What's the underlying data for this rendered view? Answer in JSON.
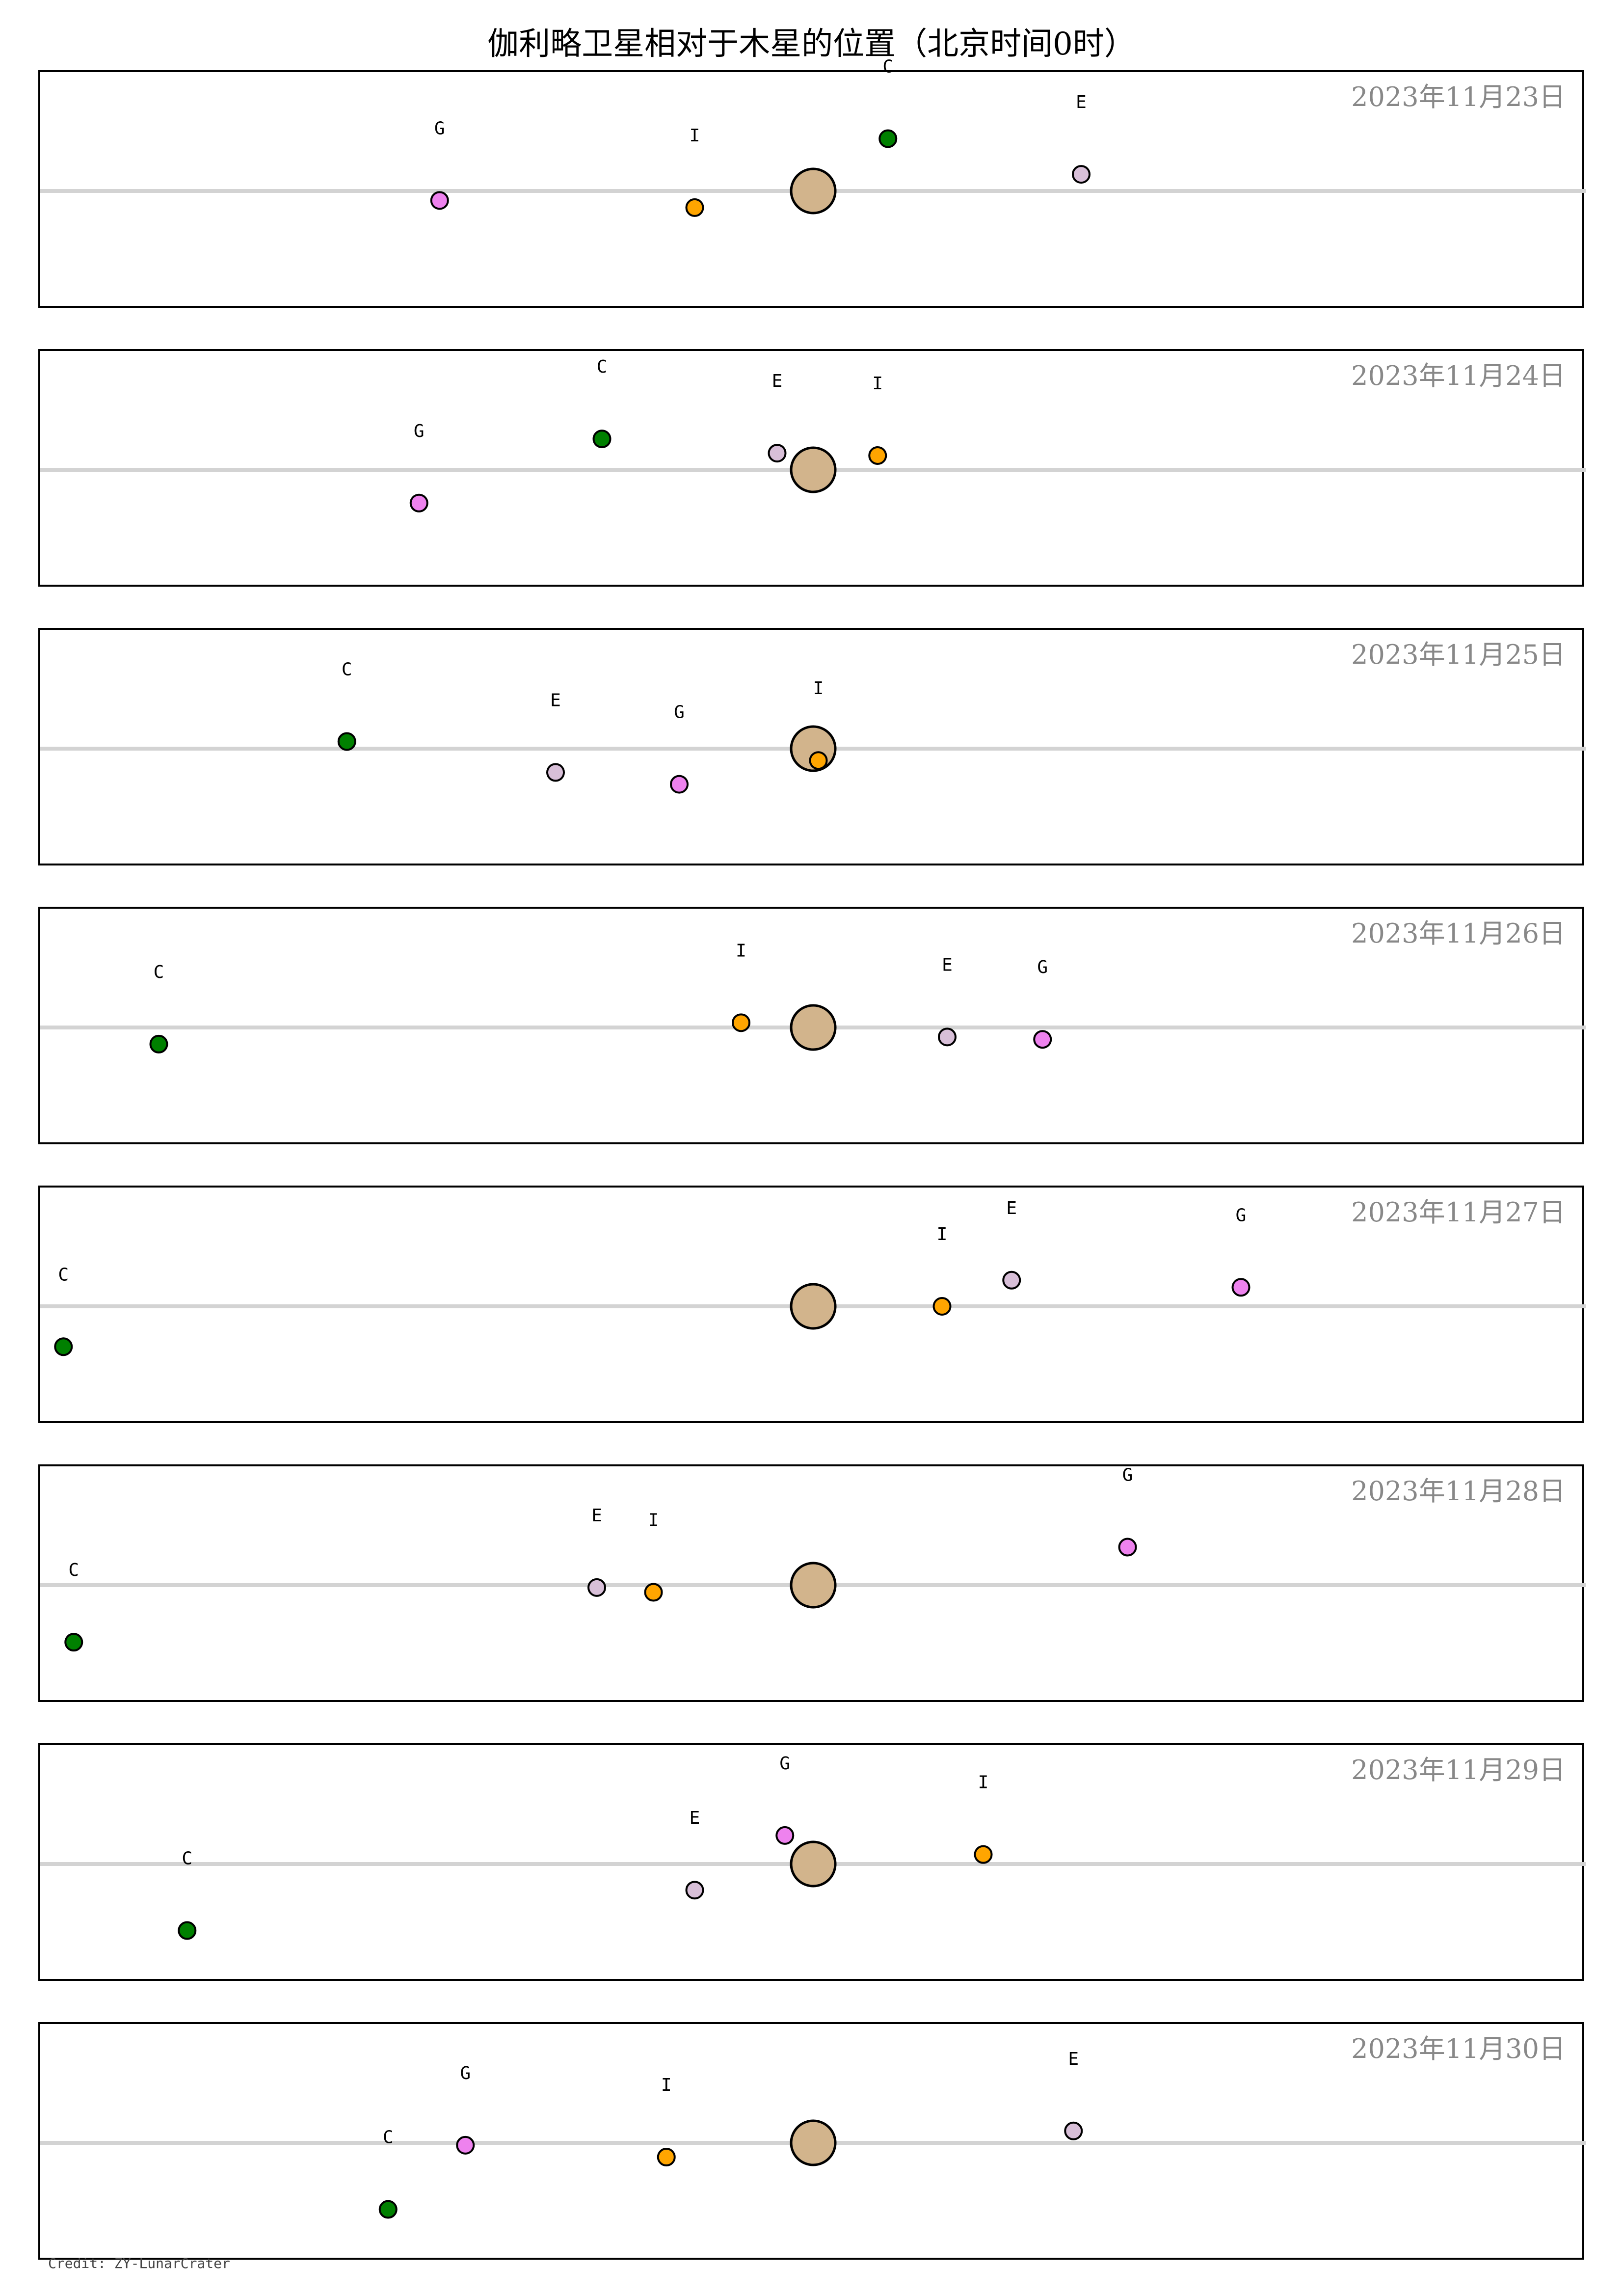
{
  "title": "伽利略卫星相对于木星的位置（北京时间0时）",
  "credit": "Credit: ZY-LunarCrater",
  "colors": {
    "jupiter": "#d2b48c",
    "I": "#ffa500",
    "E": "#d8bfd8",
    "G": "#ee82ee",
    "C": "#008000",
    "axis_line": "#d3d3d3",
    "date_text": "#888888"
  },
  "chart_data": [
    {
      "type": "scatter",
      "date": "2023年11月23日",
      "xlim": [
        -30,
        30
      ],
      "ylim": [
        -2.5,
        2.5
      ],
      "points": [
        {
          "label": "G",
          "x": -14.5,
          "y": -0.2
        },
        {
          "label": "I",
          "x": -4.6,
          "y": -0.35
        },
        {
          "label": "C",
          "x": 2.9,
          "y": 1.1
        },
        {
          "label": "E",
          "x": 10.4,
          "y": 0.35
        }
      ]
    },
    {
      "type": "scatter",
      "date": "2023年11月24日",
      "xlim": [
        -30,
        30
      ],
      "ylim": [
        -2.5,
        2.5
      ],
      "points": [
        {
          "label": "G",
          "x": -15.3,
          "y": -0.7
        },
        {
          "label": "C",
          "x": -8.2,
          "y": 0.65
        },
        {
          "label": "E",
          "x": -1.4,
          "y": 0.35
        },
        {
          "label": "I",
          "x": 2.5,
          "y": 0.3
        }
      ]
    },
    {
      "type": "scatter",
      "date": "2023年11月25日",
      "xlim": [
        -30,
        30
      ],
      "ylim": [
        -2.5,
        2.5
      ],
      "points": [
        {
          "label": "C",
          "x": -18.1,
          "y": 0.15
        },
        {
          "label": "E",
          "x": -10.0,
          "y": -0.5
        },
        {
          "label": "G",
          "x": -5.2,
          "y": -0.75
        },
        {
          "label": "I",
          "x": 0.2,
          "y": -0.25
        }
      ]
    },
    {
      "type": "scatter",
      "date": "2023年11月26日",
      "xlim": [
        -30,
        30
      ],
      "ylim": [
        -2.5,
        2.5
      ],
      "points": [
        {
          "label": "C",
          "x": -25.4,
          "y": -0.35
        },
        {
          "label": "I",
          "x": -2.8,
          "y": 0.1
        },
        {
          "label": "E",
          "x": 5.2,
          "y": -0.2
        },
        {
          "label": "G",
          "x": 8.9,
          "y": -0.25
        }
      ]
    },
    {
      "type": "scatter",
      "date": "2023年11月27日",
      "xlim": [
        -30,
        30
      ],
      "ylim": [
        -2.5,
        2.5
      ],
      "points": [
        {
          "label": "C",
          "x": -29.1,
          "y": -0.85
        },
        {
          "label": "I",
          "x": 5.0,
          "y": 0.0
        },
        {
          "label": "E",
          "x": 7.7,
          "y": 0.55
        },
        {
          "label": "G",
          "x": 16.6,
          "y": 0.4
        }
      ]
    },
    {
      "type": "scatter",
      "date": "2023年11月28日",
      "xlim": [
        -30,
        30
      ],
      "ylim": [
        -2.5,
        2.5
      ],
      "points": [
        {
          "label": "C",
          "x": -28.7,
          "y": -1.2
        },
        {
          "label": "E",
          "x": -8.4,
          "y": -0.05
        },
        {
          "label": "I",
          "x": -6.2,
          "y": -0.15
        },
        {
          "label": "G",
          "x": 12.2,
          "y": 0.8
        }
      ]
    },
    {
      "type": "scatter",
      "date": "2023年11月29日",
      "xlim": [
        -30,
        30
      ],
      "ylim": [
        -2.5,
        2.5
      ],
      "points": [
        {
          "label": "C",
          "x": -24.3,
          "y": -1.4
        },
        {
          "label": "E",
          "x": -4.6,
          "y": -0.55
        },
        {
          "label": "G",
          "x": -1.1,
          "y": 0.6
        },
        {
          "label": "I",
          "x": 6.6,
          "y": 0.2
        }
      ]
    },
    {
      "type": "scatter",
      "date": "2023年11月30日",
      "xlim": [
        -30,
        30
      ],
      "ylim": [
        -2.5,
        2.5
      ],
      "points": [
        {
          "label": "C",
          "x": -16.5,
          "y": -1.4
        },
        {
          "label": "G",
          "x": -13.5,
          "y": -0.05
        },
        {
          "label": "I",
          "x": -5.7,
          "y": -0.3
        },
        {
          "label": "E",
          "x": 10.1,
          "y": 0.25
        }
      ]
    }
  ]
}
